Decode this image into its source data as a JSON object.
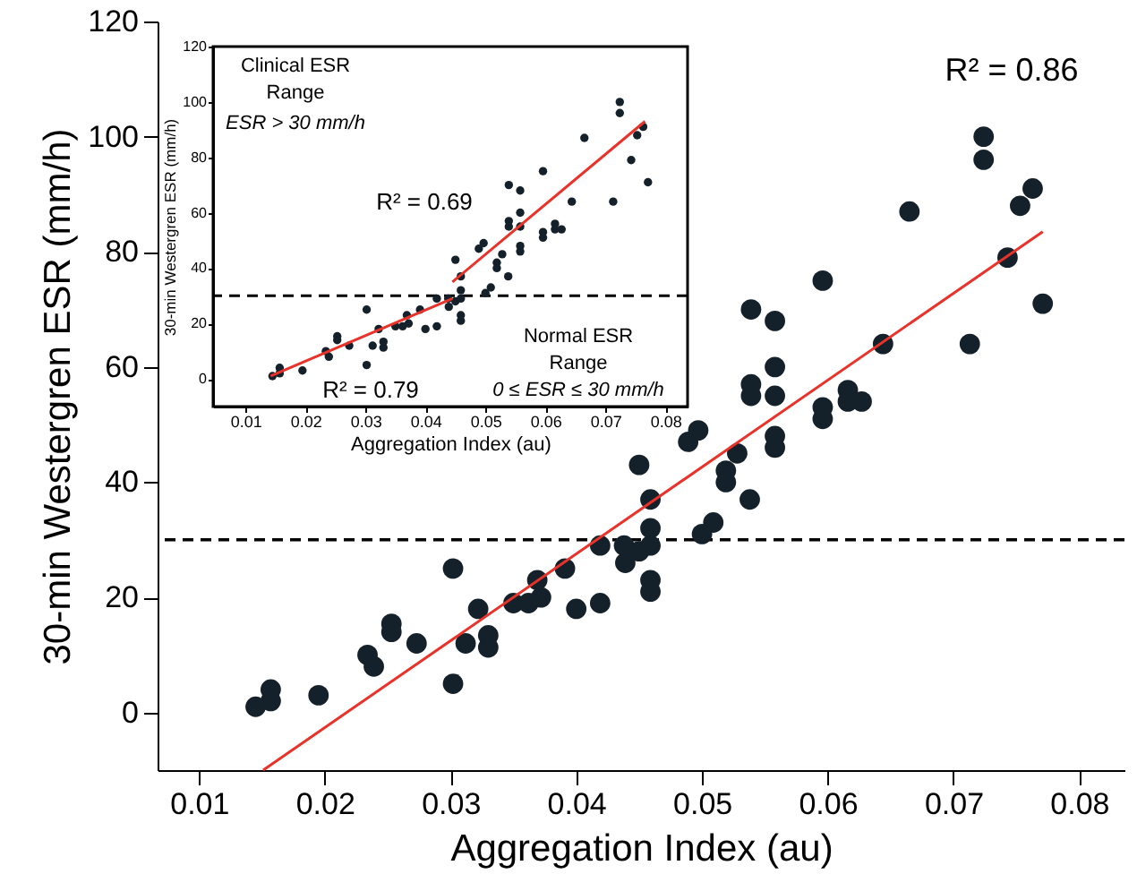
{
  "chart_data": [
    {
      "type": "scatter",
      "xlabel": "Aggregation Index (au)",
      "ylabel": "30-min Westergren ESR (mm/h)",
      "xlim": [
        0.0067,
        0.0836
      ],
      "ylim": [
        -10,
        120
      ],
      "xticks": [
        0.01,
        0.02,
        0.03,
        0.04,
        0.05,
        0.06,
        0.07,
        0.08
      ],
      "yticks": [
        0,
        20,
        40,
        60,
        80,
        100,
        120
      ],
      "series": [
        {
          "marker": "circle",
          "color": "#15212a",
          "x": [
            0.0145,
            0.0157,
            0.0157,
            0.0195,
            0.0234,
            0.0239,
            0.0253,
            0.0253,
            0.0273,
            0.0302,
            0.0302,
            0.0312,
            0.0322,
            0.033,
            0.033,
            0.035,
            0.0362,
            0.0369,
            0.0372,
            0.0391,
            0.04,
            0.0419,
            0.0419,
            0.0438,
            0.0439,
            0.045,
            0.0459,
            0.0459,
            0.0459,
            0.0459,
            0.0459,
            0.045,
            0.05,
            0.0509,
            0.0489,
            0.0497,
            0.0519,
            0.0519,
            0.0528,
            0.0538,
            0.0539,
            0.0539,
            0.0539,
            0.0558,
            0.0558,
            0.0558,
            0.0558,
            0.0558,
            0.0596,
            0.0596,
            0.0596,
            0.0616,
            0.0616,
            0.0627,
            0.0644,
            0.0665,
            0.0713,
            0.0724,
            0.0724,
            0.0743,
            0.0753,
            0.0763,
            0.0771
          ],
          "values": [
            1,
            4,
            2,
            3,
            10,
            8,
            15.4,
            14,
            12,
            25,
            5,
            12,
            18,
            13.4,
            11.3,
            19,
            19,
            23,
            20,
            25,
            18,
            29,
            19,
            29,
            26,
            28,
            32,
            29,
            23,
            21,
            37,
            43,
            31,
            33,
            47,
            49,
            42,
            40,
            45,
            37,
            70,
            57,
            55,
            68,
            60,
            55,
            48,
            46,
            75,
            53,
            51,
            56,
            54,
            54,
            64,
            87,
            64,
            100,
            96,
            79,
            88,
            91,
            71
          ]
        },
        {
          "type": "line",
          "color": "#e8322a",
          "x": [
            0.0151,
            0.0771
          ],
          "values": [
            -10,
            83.5
          ]
        }
      ],
      "ref_lines": [
        {
          "axis": "y",
          "value": 30,
          "line_style": "dashed",
          "color": "#000000"
        }
      ],
      "annotations": [
        "R² = 0.86"
      ]
    },
    {
      "type": "scatter",
      "xlabel": "Aggregation Index (au)",
      "ylabel": "30-min Westergren ESR (mm/h)",
      "xlim": [
        0.0046,
        0.0837
      ],
      "ylim": [
        -10,
        120
      ],
      "xticks": [
        0.01,
        0.02,
        0.03,
        0.04,
        0.05,
        0.06,
        0.07,
        0.08
      ],
      "yticks": [
        0,
        20,
        40,
        60,
        80,
        100,
        120
      ],
      "series": [
        {
          "marker": "circle",
          "color": "#15212a",
          "x": [
            0.0145,
            0.0157,
            0.0157,
            0.0195,
            0.0234,
            0.0239,
            0.0253,
            0.0253,
            0.0273,
            0.0302,
            0.0302,
            0.0312,
            0.0322,
            0.033,
            0.033,
            0.035,
            0.0362,
            0.0369,
            0.0372,
            0.0391,
            0.04,
            0.0419,
            0.0419,
            0.0438,
            0.0439,
            0.045,
            0.0459,
            0.0459,
            0.0459,
            0.0459,
            0.0459,
            0.045,
            0.05,
            0.0509,
            0.0489,
            0.0497,
            0.0519,
            0.0519,
            0.0528,
            0.0538,
            0.0539,
            0.0539,
            0.0539,
            0.0558,
            0.0558,
            0.0558,
            0.0558,
            0.0558,
            0.0596,
            0.0596,
            0.0596,
            0.0616,
            0.0616,
            0.0627,
            0.0644,
            0.0665,
            0.0713,
            0.0724,
            0.0724,
            0.0743,
            0.0753,
            0.0763,
            0.0771
          ],
          "values": [
            1,
            4,
            2,
            3,
            10,
            8,
            15.4,
            14,
            12,
            25,
            5,
            12,
            18,
            13.4,
            11.3,
            19,
            19,
            23,
            20,
            25,
            18,
            29,
            19,
            29,
            26,
            28,
            32,
            29,
            23,
            21,
            37,
            43,
            31,
            33,
            47,
            49,
            42,
            40,
            45,
            37,
            70,
            57,
            55,
            68,
            60,
            55,
            48,
            46,
            75,
            53,
            51,
            56,
            54,
            54,
            64,
            87,
            64,
            100,
            96,
            79,
            88,
            91,
            71
          ]
        },
        {
          "type": "line",
          "color": "#e8322a",
          "x": [
            0.0142,
            0.0445
          ],
          "values": [
            1,
            29
          ]
        },
        {
          "type": "line",
          "color": "#e8322a",
          "x": [
            0.0445,
            0.0766
          ],
          "values": [
            35,
            93
          ]
        }
      ],
      "ref_lines": [
        {
          "axis": "y",
          "value": 30,
          "line_style": "dashed",
          "color": "#000000"
        }
      ],
      "annotations": [
        "Clinical ESR Range",
        "ESR > 30 mm/h",
        "R² = 0.69",
        "R² = 0.79",
        "Normal ESR Range",
        "0 ≤ ESR ≤ 30 mm/h"
      ]
    }
  ]
}
